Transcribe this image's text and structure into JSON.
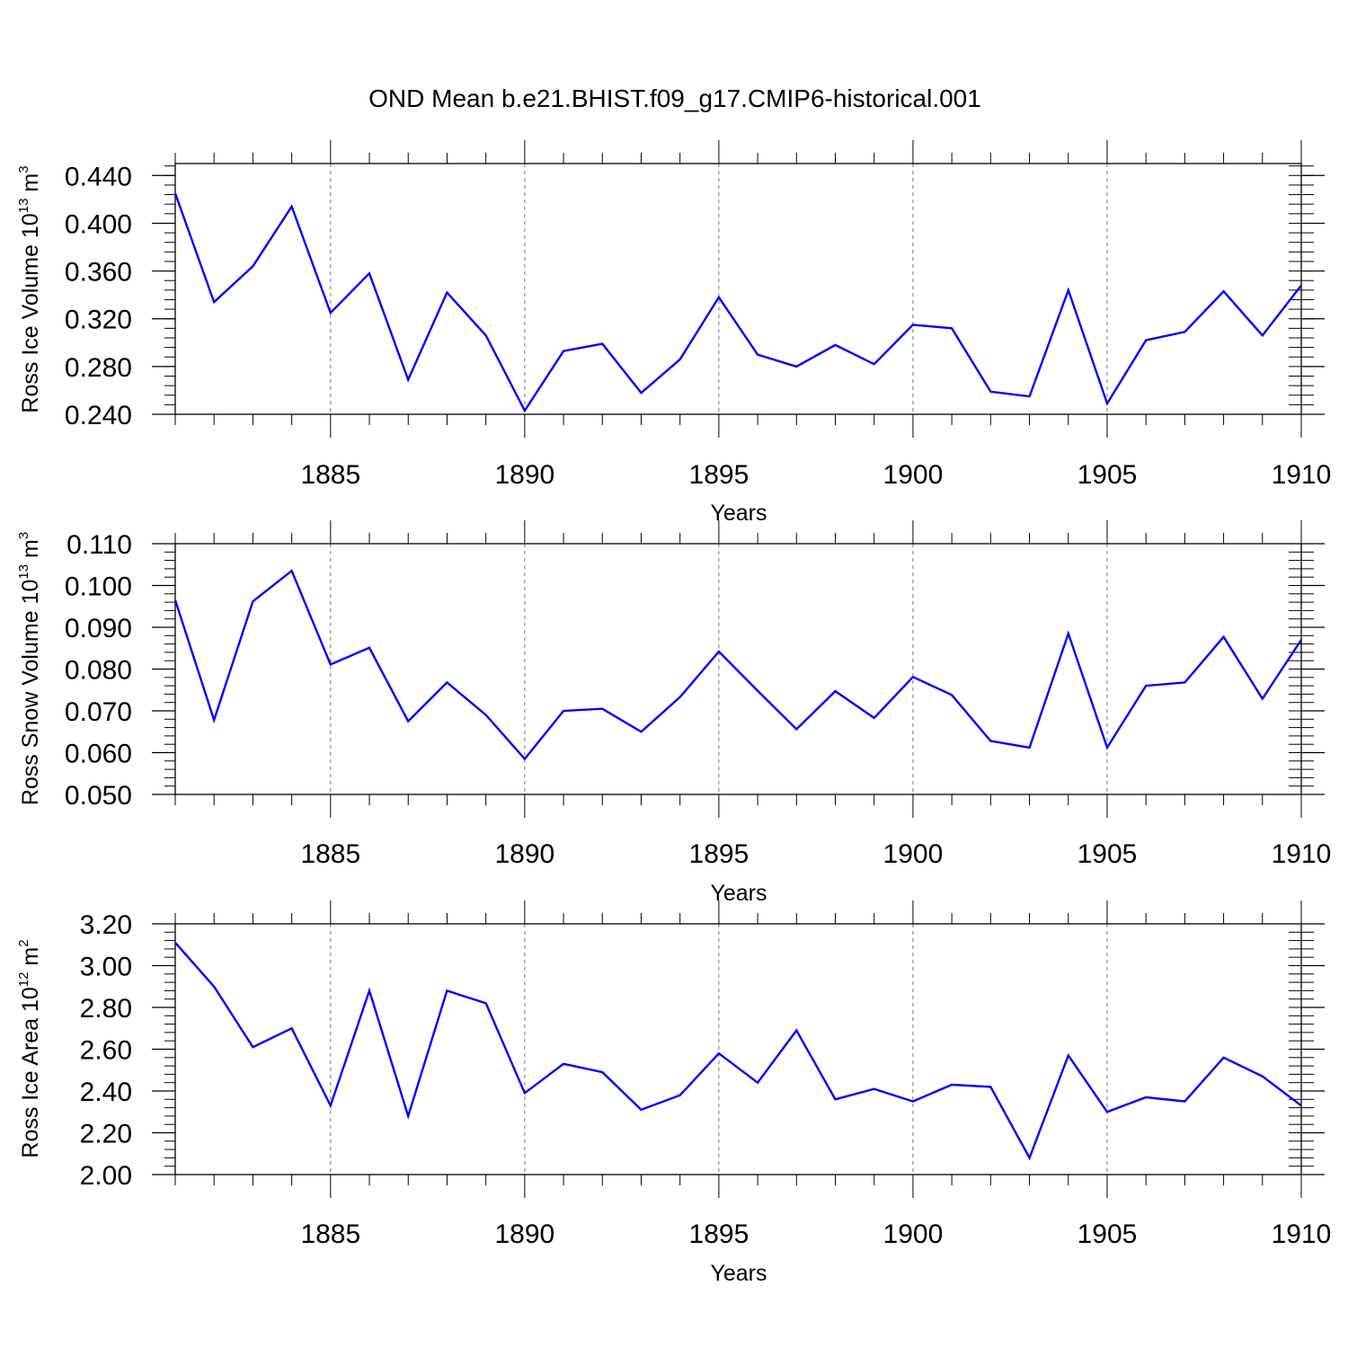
{
  "title": "OND Mean b.e21.BHIST.f09_g17.CMIP6-historical.001",
  "colors": {
    "line": "#0000ff",
    "axes": "#000000",
    "grid": "#777777"
  },
  "chart_data": [
    {
      "type": "line",
      "xlabel": "Years",
      "ylabel": {
        "main": "Ross Ice Volume 10",
        "sup": "13",
        "unit": " m",
        "unit_sup": "3"
      },
      "xlim": [
        1881,
        1910
      ],
      "ylim": [
        0.24,
        0.45
      ],
      "yticks": [
        0.24,
        0.28,
        0.32,
        0.36,
        0.4,
        0.44
      ],
      "ytick_labels": [
        "0.240",
        "0.280",
        "0.320",
        "0.360",
        "0.400",
        "0.440"
      ],
      "yminor_step": 0.008,
      "xticks": [
        1885,
        1890,
        1895,
        1900,
        1905,
        1910
      ],
      "xtick_labels": [
        "1885",
        "1890",
        "1895",
        "1900",
        "1905",
        "1910"
      ],
      "grid": "x-major-dashed",
      "x": [
        1881,
        1882,
        1883,
        1884,
        1885,
        1886,
        1887,
        1888,
        1889,
        1890,
        1891,
        1892,
        1893,
        1894,
        1895,
        1896,
        1897,
        1898,
        1899,
        1900,
        1901,
        1902,
        1903,
        1904,
        1905,
        1906,
        1907,
        1908,
        1909,
        1910
      ],
      "series": [
        {
          "name": "Ross Ice Volume",
          "values": [
            0.425,
            0.334,
            0.364,
            0.414,
            0.325,
            0.358,
            0.269,
            0.342,
            0.306,
            0.243,
            0.293,
            0.299,
            0.258,
            0.286,
            0.338,
            0.29,
            0.28,
            0.298,
            0.282,
            0.315,
            0.312,
            0.259,
            0.255,
            0.344,
            0.249,
            0.302,
            0.309,
            0.343,
            0.306,
            0.348
          ]
        }
      ]
    },
    {
      "type": "line",
      "xlabel": "Years",
      "ylabel": {
        "main": "Ross Snow Volume 10",
        "sup": "13",
        "unit": " m",
        "unit_sup": "3"
      },
      "xlim": [
        1881,
        1910
      ],
      "ylim": [
        0.05,
        0.11
      ],
      "yticks": [
        0.05,
        0.06,
        0.07,
        0.08,
        0.09,
        0.1,
        0.11
      ],
      "ytick_labels": [
        "0.050",
        "0.060",
        "0.070",
        "0.080",
        "0.090",
        "0.100",
        "0.110"
      ],
      "yminor_step": 0.002,
      "xticks": [
        1885,
        1890,
        1895,
        1900,
        1905,
        1910
      ],
      "xtick_labels": [
        "1885",
        "1890",
        "1895",
        "1900",
        "1905",
        "1910"
      ],
      "grid": "x-major-dashed",
      "x": [
        1881,
        1882,
        1883,
        1884,
        1885,
        1886,
        1887,
        1888,
        1889,
        1890,
        1891,
        1892,
        1893,
        1894,
        1895,
        1896,
        1897,
        1898,
        1899,
        1900,
        1901,
        1902,
        1903,
        1904,
        1905,
        1906,
        1907,
        1908,
        1909,
        1910
      ],
      "series": [
        {
          "name": "Ross Snow Volume",
          "values": [
            0.0965,
            0.0678,
            0.0962,
            0.1035,
            0.0811,
            0.0851,
            0.0675,
            0.0768,
            0.069,
            0.0585,
            0.07,
            0.0705,
            0.065,
            0.0733,
            0.0842,
            0.0748,
            0.0656,
            0.0747,
            0.0683,
            0.0781,
            0.0738,
            0.0628,
            0.0612,
            0.0885,
            0.0612,
            0.076,
            0.0768,
            0.0877,
            0.0729,
            0.087
          ]
        }
      ]
    },
    {
      "type": "line",
      "xlabel": "Years",
      "ylabel": {
        "main": "Ross Ice Area 10",
        "sup": "12",
        "unit": " m",
        "unit_sup": "2"
      },
      "xlim": [
        1881,
        1910
      ],
      "ylim": [
        2.0,
        3.2
      ],
      "yticks": [
        2.0,
        2.2,
        2.4,
        2.6,
        2.8,
        3.0,
        3.2
      ],
      "ytick_labels": [
        "2.00",
        "2.20",
        "2.40",
        "2.60",
        "2.80",
        "3.00",
        "3.20"
      ],
      "yminor_step": 0.04,
      "xticks": [
        1885,
        1890,
        1895,
        1900,
        1905,
        1910
      ],
      "xtick_labels": [
        "1885",
        "1890",
        "1895",
        "1900",
        "1905",
        "1910"
      ],
      "grid": "x-major-dashed",
      "x": [
        1881,
        1882,
        1883,
        1884,
        1885,
        1886,
        1887,
        1888,
        1889,
        1890,
        1891,
        1892,
        1893,
        1894,
        1895,
        1896,
        1897,
        1898,
        1899,
        1900,
        1901,
        1902,
        1903,
        1904,
        1905,
        1906,
        1907,
        1908,
        1909,
        1910
      ],
      "series": [
        {
          "name": "Ross Ice Area",
          "values": [
            3.11,
            2.9,
            2.61,
            2.7,
            2.33,
            2.88,
            2.28,
            2.88,
            2.82,
            2.39,
            2.53,
            2.49,
            2.31,
            2.38,
            2.58,
            2.44,
            2.69,
            2.36,
            2.41,
            2.35,
            2.43,
            2.42,
            2.08,
            2.57,
            2.3,
            2.37,
            2.35,
            2.56,
            2.47,
            2.33
          ]
        }
      ]
    }
  ]
}
